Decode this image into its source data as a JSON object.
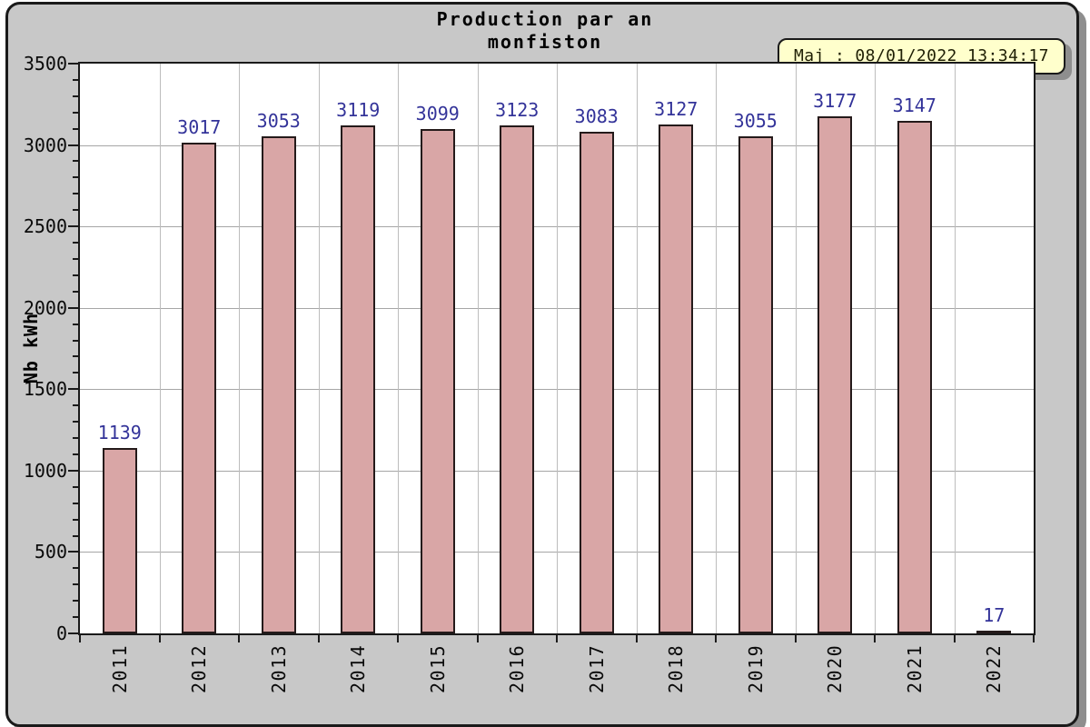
{
  "title": {
    "line1": "Production par an",
    "line2": "monfiston"
  },
  "update_badge": {
    "text": "Maj : 08/01/2022 13:34:17"
  },
  "chart_data": {
    "type": "bar",
    "title": "Production par an",
    "subtitle": "monfiston",
    "categories": [
      "2011",
      "2012",
      "2013",
      "2014",
      "2015",
      "2016",
      "2017",
      "2018",
      "2019",
      "2020",
      "2021",
      "2022"
    ],
    "values": [
      1139,
      3017,
      3053,
      3119,
      3099,
      3123,
      3083,
      3127,
      3055,
      3177,
      3147,
      17
    ],
    "xlabel": "",
    "ylabel": "Nb kWh",
    "ylim": [
      0,
      3500
    ],
    "yticks": [
      0,
      500,
      1000,
      1500,
      2000,
      2500,
      3000,
      3500
    ],
    "minor_tick_step": 100,
    "grid": true,
    "legend": false,
    "bar_color": "#d9a6a6",
    "bar_border_color": "#241a1a",
    "value_label_color": "#333399"
  },
  "colors": {
    "panel_background": "#c8c8c8",
    "plot_background": "#ffffff",
    "frame_border": "#1a1a1a",
    "gridline": "#a6a6a6",
    "tooltip_background": "#ffffcc",
    "shadow": "#8e8e8e"
  }
}
